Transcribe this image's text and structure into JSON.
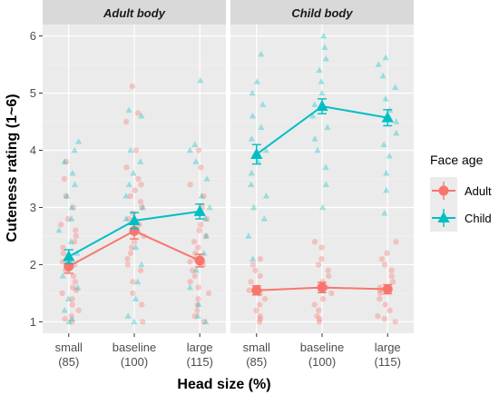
{
  "chart_data": {
    "type": "scatter",
    "xlabel": "Head size (%)",
    "ylabel": "Cuteness rating (1~6)",
    "ylim": [
      0.8,
      6.2
    ],
    "yticks": [
      1,
      2,
      3,
      4,
      5,
      6
    ],
    "x_tick_labels": [
      {
        "line1": "small",
        "line2": "(85)"
      },
      {
        "line1": "baseline",
        "line2": "(100)"
      },
      {
        "line1": "large",
        "line2": "(115)"
      }
    ],
    "facets": [
      {
        "label": "Adult body",
        "series": [
          {
            "name": "Adult",
            "means": [
              1.97,
              2.59,
              2.07
            ],
            "errors": [
              0.12,
              0.14,
              0.11
            ]
          },
          {
            "name": "Child",
            "means": [
              2.14,
              2.77,
              2.93
            ],
            "errors": [
              0.12,
              0.14,
              0.13
            ]
          }
        ]
      },
      {
        "label": "Child body",
        "series": [
          {
            "name": "Adult",
            "means": [
              1.55,
              1.6,
              1.57
            ],
            "errors": [
              0.08,
              0.09,
              0.08
            ]
          },
          {
            "name": "Child",
            "means": [
              3.93,
              4.77,
              4.57
            ],
            "errors": [
              0.17,
              0.13,
              0.14
            ]
          }
        ]
      }
    ],
    "raw_points": {
      "Adult body": {
        "Adult": [
          [
            1.0,
            1.05,
            1.1,
            1.2,
            1.3,
            1.4,
            1.5,
            1.55,
            1.6,
            1.7,
            1.8,
            1.9,
            2.0,
            2.05,
            2.1,
            2.2,
            2.3,
            2.4,
            2.5,
            2.6,
            2.7,
            2.8,
            3.0,
            3.2,
            3.5,
            3.8
          ],
          [
            1.0,
            1.3,
            1.5,
            1.7,
            1.9,
            2.0,
            2.1,
            2.2,
            2.3,
            2.4,
            2.5,
            2.6,
            2.7,
            2.8,
            2.9,
            3.0,
            3.1,
            3.2,
            3.3,
            3.4,
            3.5,
            3.7,
            4.0,
            4.5,
            4.65,
            5.12
          ],
          [
            1.0,
            1.1,
            1.2,
            1.3,
            1.4,
            1.5,
            1.6,
            1.7,
            1.8,
            1.9,
            2.0,
            2.05,
            2.1,
            2.2,
            2.3,
            2.4,
            2.5,
            2.6,
            2.7,
            2.8,
            3.0,
            3.2,
            3.4,
            3.7,
            4.0
          ]
        ],
        "Child": [
          [
            1.0,
            1.05,
            1.2,
            1.4,
            1.6,
            1.8,
            2.0,
            2.2,
            2.4,
            2.6,
            2.8,
            3.0,
            3.2,
            3.4,
            3.6,
            3.8,
            4.0,
            4.15
          ],
          [
            1.0,
            1.1,
            1.4,
            1.7,
            2.0,
            2.3,
            2.6,
            2.8,
            3.0,
            3.2,
            3.4,
            3.6,
            3.8,
            4.0,
            4.6,
            4.7
          ],
          [
            1.0,
            1.1,
            1.3,
            1.6,
            1.9,
            2.2,
            2.5,
            2.8,
            3.0,
            3.2,
            3.5,
            3.8,
            4.0,
            4.1,
            5.22
          ]
        ]
      },
      "Child body": {
        "Adult": [
          [
            1.0,
            1.05,
            1.1,
            1.2,
            1.3,
            1.4,
            1.5,
            1.55,
            1.6,
            1.7,
            1.8,
            1.9,
            2.0,
            2.1
          ],
          [
            1.0,
            1.05,
            1.1,
            1.2,
            1.3,
            1.4,
            1.5,
            1.6,
            1.7,
            1.8,
            1.9,
            2.0,
            2.1,
            2.3,
            2.4
          ],
          [
            1.0,
            1.05,
            1.1,
            1.2,
            1.3,
            1.4,
            1.5,
            1.55,
            1.6,
            1.7,
            1.8,
            1.9,
            2.0,
            2.1,
            2.2,
            2.4
          ]
        ],
        "Child": [
          [
            2.1,
            2.5,
            2.8,
            3.0,
            3.2,
            3.4,
            3.6,
            3.8,
            4.0,
            4.2,
            4.4,
            4.6,
            4.8,
            5.0,
            5.2,
            5.68
          ],
          [
            3.0,
            3.4,
            3.7,
            4.0,
            4.2,
            4.4,
            4.6,
            4.8,
            5.0,
            5.2,
            5.4,
            5.6,
            5.8,
            6.0
          ],
          [
            2.9,
            3.3,
            3.6,
            3.9,
            4.1,
            4.3,
            4.5,
            4.7,
            4.9,
            5.1,
            5.3,
            5.5,
            5.62
          ]
        ]
      }
    },
    "legend": {
      "title": "Face age",
      "position": "right",
      "entries": [
        {
          "name": "Adult",
          "shape": "circle",
          "color": "#F8766D"
        },
        {
          "name": "Child",
          "shape": "triangle",
          "color": "#00BFC4"
        }
      ]
    },
    "colors": {
      "Adult": "#F8766D",
      "Child": "#00BFC4"
    },
    "grid": true
  }
}
